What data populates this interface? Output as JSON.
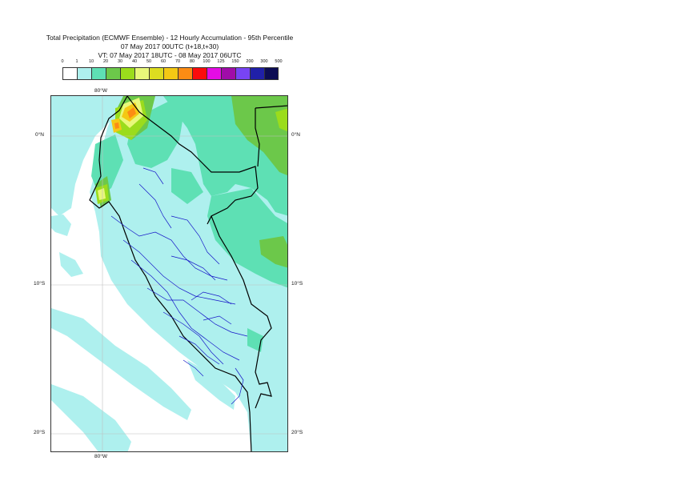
{
  "title": {
    "line1": "Total Precipitation (ECMWF Ensemble) - 12 Hourly Accumulation - 95th Percentile",
    "line2": "07 May 2017 00UTC (t+18,t+30)",
    "line3": "VT: 07 May 2017 18UTC - 08 May 2017 06UTC"
  },
  "legend": {
    "thresholds": [
      "0",
      "1",
      "10",
      "20",
      "30",
      "40",
      "50",
      "60",
      "70",
      "80",
      "100",
      "125",
      "150",
      "200",
      "300",
      "500"
    ],
    "colors": [
      "#ffffff",
      "#aef0ee",
      "#5ee0b4",
      "#6cc84a",
      "#9bdc1c",
      "#e8f87a",
      "#dcdc20",
      "#f4c814",
      "#fc8c14",
      "#fa0c0c",
      "#e40ce4",
      "#a00ca8",
      "#7844f4",
      "#2020a8",
      "#0c0c54"
    ]
  },
  "axes": {
    "lon_top": "80°W",
    "lon_bottom": "80°W",
    "lat_0_left": "0°N",
    "lat_0_right": "0°N",
    "lat_10_left": "10°S",
    "lat_10_right": "10°S",
    "lat_20_left": "20°S",
    "lat_20_right": "20°S"
  }
}
